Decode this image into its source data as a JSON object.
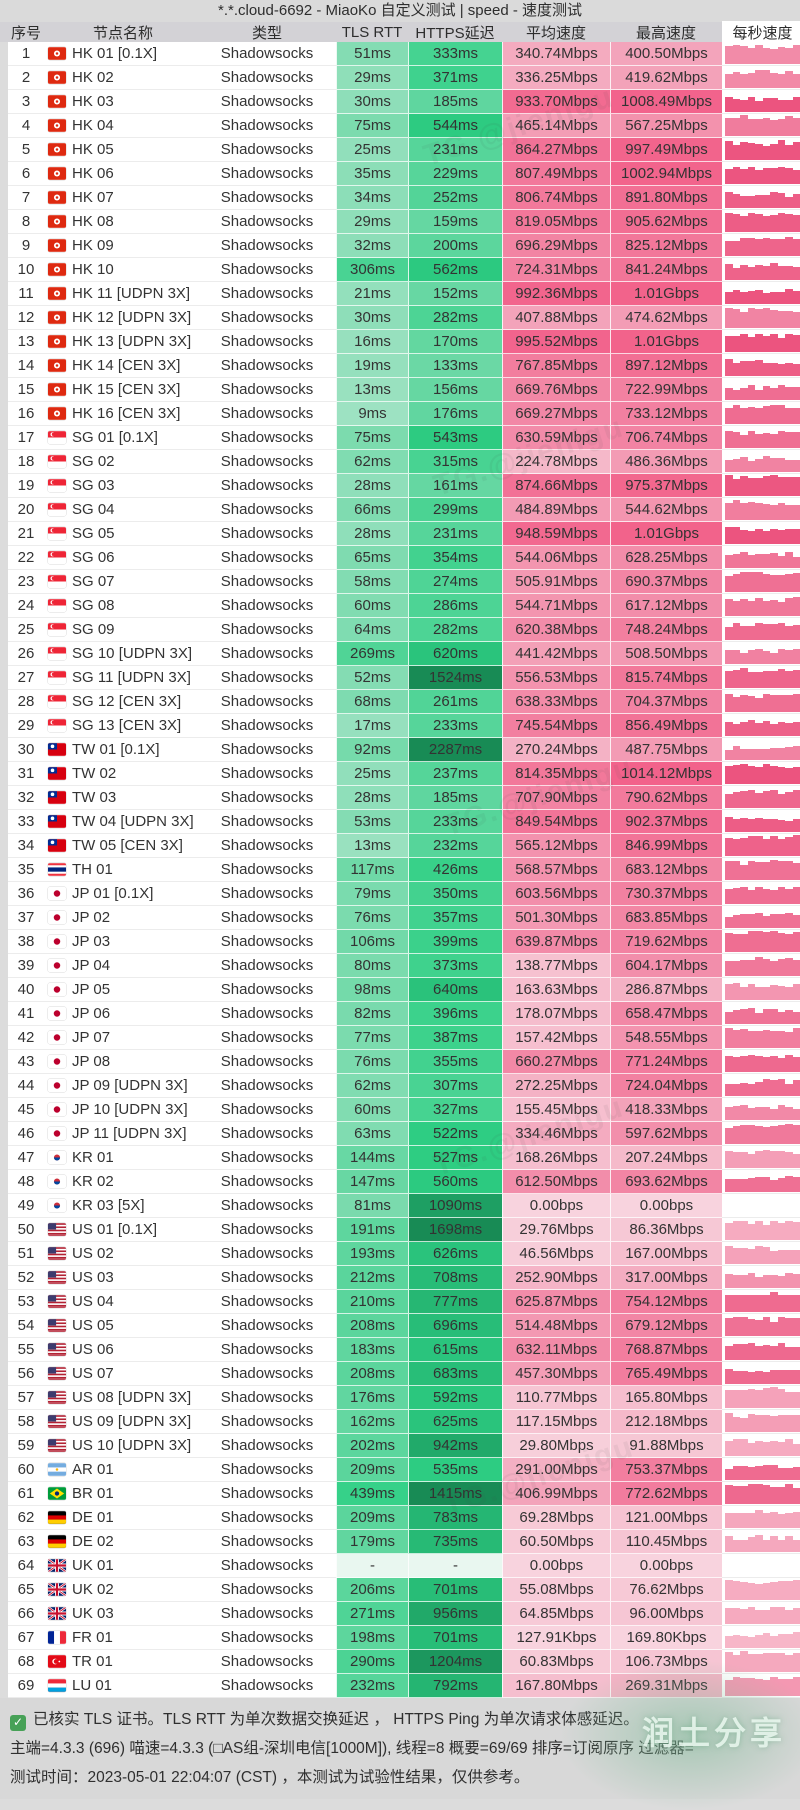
{
  "title": "*.*.cloud-6692 - MiaoKo 自定义测试 | speed - 速度测试",
  "columns": [
    "序号",
    "节点名称",
    "类型",
    "TLS RTT",
    "HTTPS延迟",
    "平均速度",
    "最高速度",
    "每秒速度"
  ],
  "row_fields": [
    "flag",
    "name",
    "type",
    "tls_rtt",
    "https_delay",
    "avg_speed",
    "max_speed"
  ],
  "rows": [
    [
      "hk",
      "HK 01 [0.1X]",
      "Shadowsocks",
      "51ms",
      "333ms",
      "340.74Mbps",
      "400.50Mbps"
    ],
    [
      "hk",
      "HK 02",
      "Shadowsocks",
      "29ms",
      "371ms",
      "336.25Mbps",
      "419.62Mbps"
    ],
    [
      "hk",
      "HK 03",
      "Shadowsocks",
      "30ms",
      "185ms",
      "933.70Mbps",
      "1008.49Mbps"
    ],
    [
      "hk",
      "HK 04",
      "Shadowsocks",
      "75ms",
      "544ms",
      "465.14Mbps",
      "567.25Mbps"
    ],
    [
      "hk",
      "HK 05",
      "Shadowsocks",
      "25ms",
      "231ms",
      "864.27Mbps",
      "997.49Mbps"
    ],
    [
      "hk",
      "HK 06",
      "Shadowsocks",
      "35ms",
      "229ms",
      "807.49Mbps",
      "1002.94Mbps"
    ],
    [
      "hk",
      "HK 07",
      "Shadowsocks",
      "34ms",
      "252ms",
      "806.74Mbps",
      "891.80Mbps"
    ],
    [
      "hk",
      "HK 08",
      "Shadowsocks",
      "29ms",
      "159ms",
      "819.05Mbps",
      "905.62Mbps"
    ],
    [
      "hk",
      "HK 09",
      "Shadowsocks",
      "32ms",
      "200ms",
      "696.29Mbps",
      "825.12Mbps"
    ],
    [
      "hk",
      "HK 10",
      "Shadowsocks",
      "306ms",
      "562ms",
      "724.31Mbps",
      "841.24Mbps"
    ],
    [
      "hk",
      "HK 11 [UDPN 3X]",
      "Shadowsocks",
      "21ms",
      "152ms",
      "992.36Mbps",
      "1.01Gbps"
    ],
    [
      "hk",
      "HK 12 [UDPN 3X]",
      "Shadowsocks",
      "30ms",
      "282ms",
      "407.88Mbps",
      "474.62Mbps"
    ],
    [
      "hk",
      "HK 13 [UDPN 3X]",
      "Shadowsocks",
      "16ms",
      "170ms",
      "995.52Mbps",
      "1.01Gbps"
    ],
    [
      "hk",
      "HK 14 [CEN 3X]",
      "Shadowsocks",
      "19ms",
      "133ms",
      "767.85Mbps",
      "897.12Mbps"
    ],
    [
      "hk",
      "HK 15 [CEN 3X]",
      "Shadowsocks",
      "13ms",
      "156ms",
      "669.76Mbps",
      "722.99Mbps"
    ],
    [
      "hk",
      "HK 16 [CEN 3X]",
      "Shadowsocks",
      "9ms",
      "176ms",
      "669.27Mbps",
      "733.12Mbps"
    ],
    [
      "sg",
      "SG 01 [0.1X]",
      "Shadowsocks",
      "75ms",
      "543ms",
      "630.59Mbps",
      "706.74Mbps"
    ],
    [
      "sg",
      "SG 02",
      "Shadowsocks",
      "62ms",
      "315ms",
      "224.78Mbps",
      "486.36Mbps"
    ],
    [
      "sg",
      "SG 03",
      "Shadowsocks",
      "28ms",
      "161ms",
      "874.66Mbps",
      "975.37Mbps"
    ],
    [
      "sg",
      "SG 04",
      "Shadowsocks",
      "66ms",
      "299ms",
      "484.89Mbps",
      "544.62Mbps"
    ],
    [
      "sg",
      "SG 05",
      "Shadowsocks",
      "28ms",
      "231ms",
      "948.59Mbps",
      "1.01Gbps"
    ],
    [
      "sg",
      "SG 06",
      "Shadowsocks",
      "65ms",
      "354ms",
      "544.06Mbps",
      "628.25Mbps"
    ],
    [
      "sg",
      "SG 07",
      "Shadowsocks",
      "58ms",
      "274ms",
      "505.91Mbps",
      "690.37Mbps"
    ],
    [
      "sg",
      "SG 08",
      "Shadowsocks",
      "60ms",
      "286ms",
      "544.71Mbps",
      "617.12Mbps"
    ],
    [
      "sg",
      "SG 09",
      "Shadowsocks",
      "64ms",
      "282ms",
      "620.38Mbps",
      "748.24Mbps"
    ],
    [
      "sg",
      "SG 10 [UDPN 3X]",
      "Shadowsocks",
      "269ms",
      "620ms",
      "441.42Mbps",
      "508.50Mbps"
    ],
    [
      "sg",
      "SG 11 [UDPN 3X]",
      "Shadowsocks",
      "52ms",
      "1524ms",
      "556.53Mbps",
      "815.74Mbps"
    ],
    [
      "sg",
      "SG 12 [CEN 3X]",
      "Shadowsocks",
      "68ms",
      "261ms",
      "638.33Mbps",
      "704.37Mbps"
    ],
    [
      "sg",
      "SG 13 [CEN 3X]",
      "Shadowsocks",
      "17ms",
      "233ms",
      "745.54Mbps",
      "856.49Mbps"
    ],
    [
      "tw",
      "TW 01 [0.1X]",
      "Shadowsocks",
      "92ms",
      "2287ms",
      "270.24Mbps",
      "487.75Mbps"
    ],
    [
      "tw",
      "TW 02",
      "Shadowsocks",
      "25ms",
      "237ms",
      "814.35Mbps",
      "1014.12Mbps"
    ],
    [
      "tw",
      "TW 03",
      "Shadowsocks",
      "28ms",
      "185ms",
      "707.90Mbps",
      "790.62Mbps"
    ],
    [
      "tw",
      "TW 04 [UDPN 3X]",
      "Shadowsocks",
      "53ms",
      "233ms",
      "849.54Mbps",
      "902.37Mbps"
    ],
    [
      "tw",
      "TW 05 [CEN 3X]",
      "Shadowsocks",
      "13ms",
      "232ms",
      "565.12Mbps",
      "846.99Mbps"
    ],
    [
      "th",
      "TH 01",
      "Shadowsocks",
      "117ms",
      "426ms",
      "568.57Mbps",
      "683.12Mbps"
    ],
    [
      "jp",
      "JP 01 [0.1X]",
      "Shadowsocks",
      "79ms",
      "350ms",
      "603.56Mbps",
      "730.37Mbps"
    ],
    [
      "jp",
      "JP 02",
      "Shadowsocks",
      "76ms",
      "357ms",
      "501.30Mbps",
      "683.85Mbps"
    ],
    [
      "jp",
      "JP 03",
      "Shadowsocks",
      "106ms",
      "399ms",
      "639.87Mbps",
      "719.62Mbps"
    ],
    [
      "jp",
      "JP 04",
      "Shadowsocks",
      "80ms",
      "373ms",
      "138.77Mbps",
      "604.17Mbps"
    ],
    [
      "jp",
      "JP 05",
      "Shadowsocks",
      "98ms",
      "640ms",
      "163.63Mbps",
      "286.87Mbps"
    ],
    [
      "jp",
      "JP 06",
      "Shadowsocks",
      "82ms",
      "396ms",
      "178.07Mbps",
      "658.47Mbps"
    ],
    [
      "jp",
      "JP 07",
      "Shadowsocks",
      "77ms",
      "387ms",
      "157.42Mbps",
      "548.55Mbps"
    ],
    [
      "jp",
      "JP 08",
      "Shadowsocks",
      "76ms",
      "355ms",
      "660.27Mbps",
      "771.24Mbps"
    ],
    [
      "jp",
      "JP 09 [UDPN 3X]",
      "Shadowsocks",
      "62ms",
      "307ms",
      "272.25Mbps",
      "724.04Mbps"
    ],
    [
      "jp",
      "JP 10 [UDPN 3X]",
      "Shadowsocks",
      "60ms",
      "327ms",
      "155.45Mbps",
      "418.33Mbps"
    ],
    [
      "jp",
      "JP 11 [UDPN 3X]",
      "Shadowsocks",
      "63ms",
      "522ms",
      "334.46Mbps",
      "597.62Mbps"
    ],
    [
      "kr",
      "KR 01",
      "Shadowsocks",
      "144ms",
      "527ms",
      "168.26Mbps",
      "207.24Mbps"
    ],
    [
      "kr",
      "KR 02",
      "Shadowsocks",
      "147ms",
      "560ms",
      "612.50Mbps",
      "693.62Mbps"
    ],
    [
      "kr",
      "KR 03 [5X]",
      "Shadowsocks",
      "81ms",
      "1090ms",
      "0.00bps",
      "0.00bps"
    ],
    [
      "us",
      "US 01 [0.1X]",
      "Shadowsocks",
      "191ms",
      "1698ms",
      "29.76Mbps",
      "86.36Mbps"
    ],
    [
      "us",
      "US 02",
      "Shadowsocks",
      "193ms",
      "626ms",
      "46.56Mbps",
      "167.00Mbps"
    ],
    [
      "us",
      "US 03",
      "Shadowsocks",
      "212ms",
      "708ms",
      "252.90Mbps",
      "317.00Mbps"
    ],
    [
      "us",
      "US 04",
      "Shadowsocks",
      "210ms",
      "777ms",
      "625.87Mbps",
      "754.12Mbps"
    ],
    [
      "us",
      "US 05",
      "Shadowsocks",
      "208ms",
      "696ms",
      "514.48Mbps",
      "679.12Mbps"
    ],
    [
      "us",
      "US 06",
      "Shadowsocks",
      "183ms",
      "615ms",
      "632.11Mbps",
      "768.87Mbps"
    ],
    [
      "us",
      "US 07",
      "Shadowsocks",
      "208ms",
      "683ms",
      "457.30Mbps",
      "765.49Mbps"
    ],
    [
      "us",
      "US 08 [UDPN 3X]",
      "Shadowsocks",
      "176ms",
      "592ms",
      "110.77Mbps",
      "165.80Mbps"
    ],
    [
      "us",
      "US 09 [UDPN 3X]",
      "Shadowsocks",
      "162ms",
      "625ms",
      "117.15Mbps",
      "212.18Mbps"
    ],
    [
      "us",
      "US 10 [UDPN 3X]",
      "Shadowsocks",
      "202ms",
      "942ms",
      "29.80Mbps",
      "91.88Mbps"
    ],
    [
      "ar",
      "AR 01",
      "Shadowsocks",
      "209ms",
      "535ms",
      "291.00Mbps",
      "753.37Mbps"
    ],
    [
      "br",
      "BR 01",
      "Shadowsocks",
      "439ms",
      "1415ms",
      "406.99Mbps",
      "772.62Mbps"
    ],
    [
      "de",
      "DE 01",
      "Shadowsocks",
      "209ms",
      "783ms",
      "69.28Mbps",
      "121.00Mbps"
    ],
    [
      "de",
      "DE 02",
      "Shadowsocks",
      "179ms",
      "735ms",
      "60.50Mbps",
      "110.45Mbps"
    ],
    [
      "gb",
      "UK 01",
      "Shadowsocks",
      "-",
      "-",
      "0.00bps",
      "0.00bps"
    ],
    [
      "gb",
      "UK 02",
      "Shadowsocks",
      "206ms",
      "701ms",
      "55.08Mbps",
      "76.62Mbps"
    ],
    [
      "gb",
      "UK 03",
      "Shadowsocks",
      "271ms",
      "956ms",
      "64.85Mbps",
      "96.00Mbps"
    ],
    [
      "fr",
      "FR 01",
      "Shadowsocks",
      "198ms",
      "701ms",
      "127.91Kbps",
      "169.80Kbps"
    ],
    [
      "tr",
      "TR 01",
      "Shadowsocks",
      "290ms",
      "1204ms",
      "60.83Mbps",
      "106.73Mbps"
    ],
    [
      "lu",
      "LU 01",
      "Shadowsocks",
      "232ms",
      "792ms",
      "167.80Mbps",
      "269.31Mbps"
    ]
  ],
  "footer": {
    "line1": "已核实 TLS 证书。TLS RTT 为单次数据交换延迟 ， HTTPS Ping 为单次请求体感延迟。",
    "line2": "主端=4.3.3 (696) 喵速=4.3.3 (□AS组-深圳电信[1000M]), 线程=8 概要=69/69 排序=订阅原序 过滤器=",
    "line3": "测试时间：2023-05-01 22:04:07 (CST) ，本测试为试验性结果，仅供参考。"
  },
  "watermark": {
    "diagonal": "TG.@jienigu",
    "corner": "润土分享"
  },
  "colors": {
    "check_green": "#47a157",
    "latency_green_dark": "#11895e",
    "latency_green_light": "#c8efda",
    "speed_pink_dark": "#ef5f92",
    "speed_pink_light": "#fbdfe8"
  }
}
